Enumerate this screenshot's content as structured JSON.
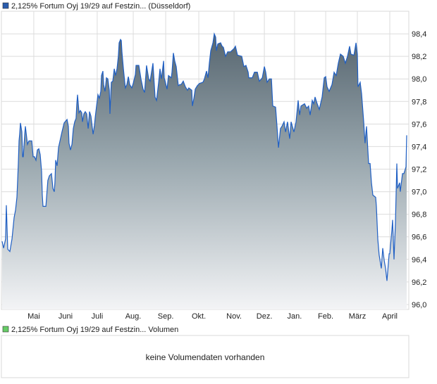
{
  "chart_data": {
    "type": "area",
    "title": "2,125% Fortum Oyj 19/29 auf Festzin... (Düsseldorf)",
    "legend": {
      "label": "2,125% Fortum Oyj 19/29 auf Festzin... (Düsseldorf)",
      "color": "#2a5cad",
      "placement": "top-left"
    },
    "xlabel": "",
    "ylabel": "",
    "xlim": [
      1.26,
      365.4
    ],
    "ylim": [
      95.956,
      98.6
    ],
    "grid": true,
    "yticks": [
      {
        "value": 96.0,
        "label": "96,0"
      },
      {
        "value": 96.2,
        "label": "96,2"
      },
      {
        "value": 96.4,
        "label": "96,4"
      },
      {
        "value": 96.6,
        "label": "96,6"
      },
      {
        "value": 96.8,
        "label": "96,8"
      },
      {
        "value": 97.0,
        "label": "97,0"
      },
      {
        "value": 97.2,
        "label": "97,2"
      },
      {
        "value": 97.4,
        "label": "97,4"
      },
      {
        "value": 97.6,
        "label": "97,6"
      },
      {
        "value": 97.8,
        "label": "97,8"
      },
      {
        "value": 98.0,
        "label": "98,0"
      },
      {
        "value": 98.2,
        "label": "98,2"
      },
      {
        "value": 98.4,
        "label": "98,4"
      }
    ],
    "xticks": [
      {
        "value": 30.2,
        "label": "Mai"
      },
      {
        "value": 58.6,
        "label": "Juni"
      },
      {
        "value": 86.9,
        "label": "Juli"
      },
      {
        "value": 119.1,
        "label": "Aug."
      },
      {
        "value": 148.1,
        "label": "Sep."
      },
      {
        "value": 177.7,
        "label": "Okt."
      },
      {
        "value": 209.2,
        "label": "Nov."
      },
      {
        "value": 236.3,
        "label": "Dez."
      },
      {
        "value": 263.3,
        "label": "Jan."
      },
      {
        "value": 291.1,
        "label": "Feb."
      },
      {
        "value": 319.4,
        "label": "März"
      },
      {
        "value": 348.4,
        "label": "April"
      }
    ],
    "series": [
      {
        "name": "2,125% Fortum Oyj 19/29 auf Festzin... (Düsseldorf)",
        "color": "#1f5fc4",
        "points": [
          [
            1.9,
            96.56
          ],
          [
            3.2,
            96.5
          ],
          [
            5.0,
            96.58
          ],
          [
            5.7,
            96.88
          ],
          [
            6.9,
            96.49
          ],
          [
            8.8,
            96.47
          ],
          [
            10.7,
            96.58
          ],
          [
            12.6,
            96.77
          ],
          [
            13.9,
            96.84
          ],
          [
            15.1,
            96.95
          ],
          [
            15.8,
            97.11
          ],
          [
            16.4,
            97.25
          ],
          [
            17.0,
            97.45
          ],
          [
            17.6,
            97.51
          ],
          [
            18.3,
            97.61
          ],
          [
            19.5,
            97.53
          ],
          [
            20.2,
            97.31
          ],
          [
            20.8,
            97.31
          ],
          [
            22.1,
            97.51
          ],
          [
            22.7,
            97.58
          ],
          [
            24.6,
            97.42
          ],
          [
            25.8,
            97.45
          ],
          [
            27.1,
            97.45
          ],
          [
            28.4,
            97.45
          ],
          [
            29.6,
            97.31
          ],
          [
            30.9,
            97.31
          ],
          [
            32.1,
            97.28
          ],
          [
            33.4,
            97.37
          ],
          [
            34.7,
            97.38
          ],
          [
            35.9,
            97.33
          ],
          [
            37.2,
            97.18
          ],
          [
            37.8,
            96.97
          ],
          [
            38.4,
            96.87
          ],
          [
            41.0,
            96.87
          ],
          [
            42.8,
            97.1
          ],
          [
            44.1,
            97.14
          ],
          [
            46.0,
            97.16
          ],
          [
            47.3,
            97.03
          ],
          [
            48.5,
            97.0
          ],
          [
            49.1,
            97.08
          ],
          [
            49.8,
            97.28
          ],
          [
            51.0,
            97.23
          ],
          [
            52.3,
            97.39
          ],
          [
            53.6,
            97.45
          ],
          [
            55.4,
            97.53
          ],
          [
            57.3,
            97.61
          ],
          [
            59.9,
            97.64
          ],
          [
            61.1,
            97.58
          ],
          [
            61.7,
            97.43
          ],
          [
            63.0,
            97.37
          ],
          [
            64.3,
            97.42
          ],
          [
            65.5,
            97.56
          ],
          [
            66.8,
            97.62
          ],
          [
            68.0,
            97.65
          ],
          [
            68.7,
            97.78
          ],
          [
            69.3,
            97.86
          ],
          [
            70.6,
            97.7
          ],
          [
            71.8,
            97.72
          ],
          [
            73.1,
            97.7
          ],
          [
            73.7,
            97.62
          ],
          [
            75.0,
            97.69
          ],
          [
            76.2,
            97.71
          ],
          [
            77.5,
            97.69
          ],
          [
            78.8,
            97.56
          ],
          [
            80.0,
            97.71
          ],
          [
            81.3,
            97.67
          ],
          [
            83.2,
            97.51
          ],
          [
            84.4,
            97.59
          ],
          [
            85.1,
            97.66
          ],
          [
            86.3,
            97.76
          ],
          [
            87.6,
            97.86
          ],
          [
            88.8,
            97.83
          ],
          [
            90.1,
            97.89
          ],
          [
            90.7,
            98.03
          ],
          [
            92.0,
            98.07
          ],
          [
            92.6,
            97.95
          ],
          [
            93.9,
            97.89
          ],
          [
            95.1,
            98.01
          ],
          [
            96.4,
            98.0
          ],
          [
            97.7,
            97.9
          ],
          [
            98.3,
            97.69
          ],
          [
            99.5,
            97.97
          ],
          [
            100.8,
            97.98
          ],
          [
            102.1,
            98.09
          ],
          [
            103.3,
            98.03
          ],
          [
            104.6,
            98.09
          ],
          [
            105.8,
            98.2
          ],
          [
            106.5,
            98.32
          ],
          [
            107.7,
            98.35
          ],
          [
            108.4,
            98.34
          ],
          [
            109.0,
            98.24
          ],
          [
            110.3,
            98.09
          ],
          [
            111.5,
            97.97
          ],
          [
            112.1,
            97.92
          ],
          [
            113.4,
            97.95
          ],
          [
            114.7,
            98.02
          ],
          [
            115.9,
            97.95
          ],
          [
            117.8,
            97.92
          ],
          [
            119.1,
            97.96
          ],
          [
            121.0,
            98.04
          ],
          [
            121.6,
            98.12
          ],
          [
            124.1,
            98.12
          ],
          [
            126.0,
            98.0
          ],
          [
            127.9,
            97.91
          ],
          [
            129.2,
            97.88
          ],
          [
            131.0,
            98.12
          ],
          [
            132.9,
            98.0
          ],
          [
            134.2,
            97.98
          ],
          [
            136.7,
            98.14
          ],
          [
            138.6,
            97.84
          ],
          [
            139.9,
            97.81
          ],
          [
            141.8,
            97.97
          ],
          [
            143.0,
            98.09
          ],
          [
            144.3,
            98.0
          ],
          [
            146.2,
            98.16
          ],
          [
            146.8,
            98.01
          ],
          [
            149.3,
            97.91
          ],
          [
            150.6,
            98.03
          ],
          [
            153.1,
            98.01
          ],
          [
            153.7,
            98.06
          ],
          [
            155.0,
            98.23
          ],
          [
            156.2,
            98.16
          ],
          [
            157.5,
            98.11
          ],
          [
            159.4,
            97.94
          ],
          [
            160.7,
            97.95
          ],
          [
            161.9,
            97.95
          ],
          [
            163.8,
            97.98
          ],
          [
            165.7,
            97.93
          ],
          [
            167.6,
            97.9
          ],
          [
            168.8,
            97.92
          ],
          [
            171.4,
            97.9
          ],
          [
            172.0,
            97.76
          ],
          [
            173.3,
            97.83
          ],
          [
            174.5,
            97.91
          ],
          [
            176.4,
            97.94
          ],
          [
            178.3,
            97.96
          ],
          [
            181.4,
            97.97
          ],
          [
            182.7,
            98.0
          ],
          [
            184.6,
            98.07
          ],
          [
            185.9,
            98.01
          ],
          [
            187.1,
            98.14
          ],
          [
            188.4,
            98.25
          ],
          [
            190.3,
            98.32
          ],
          [
            191.5,
            98.4
          ],
          [
            192.8,
            98.37
          ],
          [
            193.4,
            98.25
          ],
          [
            194.7,
            98.31
          ],
          [
            197.2,
            98.32
          ],
          [
            198.5,
            98.29
          ],
          [
            199.7,
            98.28
          ],
          [
            201.6,
            98.2
          ],
          [
            203.5,
            98.24
          ],
          [
            206.0,
            98.24
          ],
          [
            209.2,
            98.27
          ],
          [
            210.4,
            98.29
          ],
          [
            212.3,
            98.21
          ],
          [
            216.1,
            98.2
          ],
          [
            218.0,
            98.11
          ],
          [
            219.9,
            98.12
          ],
          [
            221.8,
            98.06
          ],
          [
            222.4,
            98.01
          ],
          [
            225.5,
            98.01
          ],
          [
            227.4,
            98.06
          ],
          [
            230.0,
            98.06
          ],
          [
            231.8,
            97.98
          ],
          [
            234.4,
            98.01
          ],
          [
            236.3,
            98.11
          ],
          [
            237.5,
            98.06
          ],
          [
            238.8,
            97.97
          ],
          [
            240.7,
            98.0
          ],
          [
            242.6,
            98.0
          ],
          [
            243.8,
            97.76
          ],
          [
            246.3,
            97.75
          ],
          [
            247.6,
            97.58
          ],
          [
            248.9,
            97.39
          ],
          [
            250.7,
            97.56
          ],
          [
            252.0,
            97.58
          ],
          [
            253.9,
            97.62
          ],
          [
            255.2,
            97.53
          ],
          [
            257.0,
            97.62
          ],
          [
            258.9,
            97.47
          ],
          [
            260.2,
            97.62
          ],
          [
            262.7,
            97.53
          ],
          [
            264.6,
            97.62
          ],
          [
            266.5,
            97.81
          ],
          [
            267.8,
            97.68
          ],
          [
            269.0,
            97.76
          ],
          [
            272.2,
            97.78
          ],
          [
            274.1,
            97.74
          ],
          [
            275.9,
            97.76
          ],
          [
            277.2,
            97.68
          ],
          [
            279.1,
            97.81
          ],
          [
            280.4,
            97.78
          ],
          [
            281.6,
            97.84
          ],
          [
            283.5,
            97.78
          ],
          [
            285.4,
            97.73
          ],
          [
            287.9,
            97.84
          ],
          [
            289.8,
            98.01
          ],
          [
            291.1,
            98.02
          ],
          [
            292.3,
            97.93
          ],
          [
            294.2,
            97.89
          ],
          [
            296.7,
            97.95
          ],
          [
            298.6,
            98.06
          ],
          [
            300.5,
            98.03
          ],
          [
            302.4,
            98.14
          ],
          [
            304.3,
            98.22
          ],
          [
            306.8,
            98.2
          ],
          [
            308.7,
            98.14
          ],
          [
            310.6,
            98.2
          ],
          [
            312.5,
            98.29
          ],
          [
            313.7,
            98.22
          ],
          [
            316.3,
            98.21
          ],
          [
            318.2,
            98.32
          ],
          [
            319.4,
            98.22
          ],
          [
            320.0,
            97.93
          ],
          [
            321.9,
            97.97
          ],
          [
            323.2,
            97.87
          ],
          [
            325.1,
            97.62
          ],
          [
            326.3,
            97.43
          ],
          [
            327.6,
            97.58
          ],
          [
            329.5,
            97.25
          ],
          [
            330.8,
            97.25
          ],
          [
            332.0,
            97.08
          ],
          [
            333.3,
            96.97
          ],
          [
            335.8,
            96.95
          ],
          [
            336.4,
            96.87
          ],
          [
            337.7,
            96.58
          ],
          [
            338.9,
            96.44
          ],
          [
            340.8,
            96.32
          ],
          [
            342.1,
            96.5
          ],
          [
            343.4,
            96.39
          ],
          [
            344.6,
            96.32
          ],
          [
            345.9,
            96.21
          ],
          [
            347.8,
            96.45
          ],
          [
            348.4,
            96.45
          ],
          [
            350.3,
            96.66
          ],
          [
            350.9,
            96.75
          ],
          [
            352.2,
            96.4
          ],
          [
            353.4,
            96.72
          ],
          [
            354.7,
            97.25
          ],
          [
            355.3,
            97.03
          ],
          [
            357.2,
            97.08
          ],
          [
            357.8,
            97.0
          ],
          [
            359.7,
            97.16
          ],
          [
            361.0,
            97.16
          ],
          [
            362.9,
            97.22
          ],
          [
            363.5,
            97.5
          ]
        ]
      }
    ],
    "volume_panel": {
      "legend_label": "2,125% Fortum Oyj 19/29 auf Festzin... Volumen",
      "legend_color": "#66cc66",
      "message": "keine Volumendaten vorhanden"
    }
  }
}
